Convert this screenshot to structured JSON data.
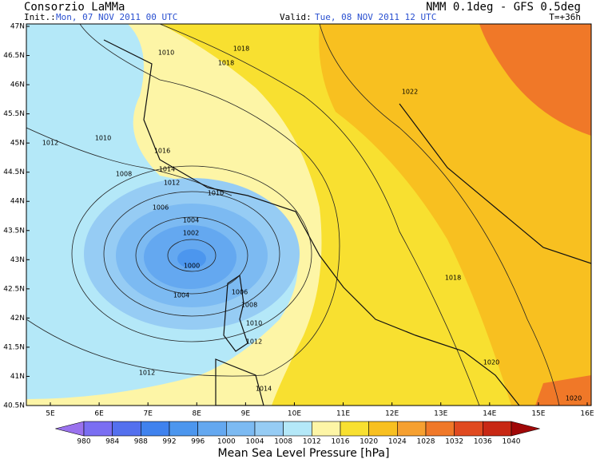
{
  "header": {
    "title": "Consorzio LaMMa",
    "model": "NMM 0.1deg - GFS 0.5deg",
    "init_label": "Init.:",
    "init": "Mon, 07 NOV 2011  00 UTC",
    "valid_label": "Valid:",
    "valid": "Tue, 08 NOV 2011  12 UTC",
    "lead": "T=+36h"
  },
  "map": {
    "lat_labels": [
      "47N",
      "46.5N",
      "46N",
      "45.5N",
      "45N",
      "44.5N",
      "44N",
      "43.5N",
      "43N",
      "42.5N",
      "42N",
      "41.5N",
      "41N",
      "40.5N"
    ],
    "lon_labels": [
      "5E",
      "6E",
      "7E",
      "8E",
      "9E",
      "10E",
      "11E",
      "12E",
      "13E",
      "14E",
      "15E",
      "16E"
    ],
    "contour_labels": [
      1010,
      1018,
      1018,
      1022,
      1012,
      1010,
      1016,
      1014,
      1008,
      1012,
      1010,
      1006,
      1004,
      1002,
      1000,
      1004,
      1006,
      1008,
      1010,
      1012,
      1018,
      1012,
      1014,
      1020,
      1020
    ]
  },
  "colorbar": {
    "levels": [
      980,
      984,
      988,
      992,
      996,
      1000,
      1004,
      1008,
      1012,
      1016,
      1020,
      1024,
      1028,
      1032,
      1036,
      1040
    ],
    "colors": [
      "#9a72ee",
      "#7a6ef2",
      "#5470ee",
      "#3f82ee",
      "#4c96ee",
      "#64a8f0",
      "#7cbaf2",
      "#96ccf4",
      "#b4e8f8",
      "#fdf5a6",
      "#f8e030",
      "#f8c020",
      "#f6a030",
      "#f07828",
      "#e04a20",
      "#c82814",
      "#a00808"
    ],
    "title": "Mean Sea Level Pressure [hPa]"
  }
}
